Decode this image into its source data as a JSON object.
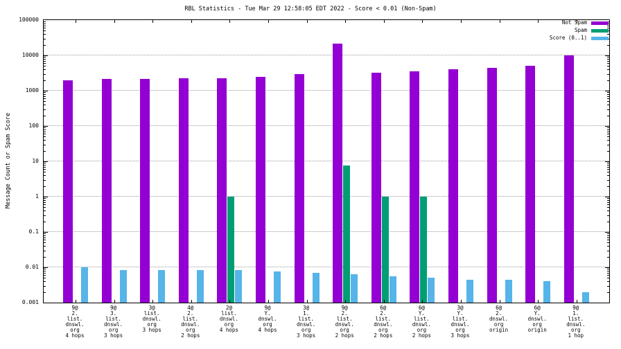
{
  "title": "RBL Statistics - Tue Mar 29 12:58:05 EDT 2022 - Score < 0.01 (Non-Spam)",
  "ylabel": "Message Count or Spam Score",
  "chart_data": {
    "type": "bar",
    "yscale": "log10",
    "ylim": [
      0.001,
      100000
    ],
    "grid": true,
    "legend_position": "top-right",
    "ytick_labels": [
      "100000",
      "10000",
      "1000",
      "100",
      "10",
      "1",
      "0.1",
      "0.01",
      "0.001"
    ],
    "categories": [
      [
        "9@",
        "2.",
        "list.",
        "dnswl.",
        "org",
        "4 hops"
      ],
      [
        "9@",
        "3.",
        "list.",
        "dnswl.",
        "org",
        "3 hops"
      ],
      [
        "3@",
        "list.",
        "dnswl.",
        "org",
        "3 hops"
      ],
      [
        "4@",
        "2.",
        "list.",
        "dnswl.",
        "org",
        "2 hops"
      ],
      [
        "2@",
        "list.",
        "dnswl.",
        "org",
        "4 hops"
      ],
      [
        "9@",
        "Y.",
        "dnswl.",
        "org",
        "4 hops"
      ],
      [
        "3@",
        "1.",
        "list.",
        "dnswl.",
        "org",
        "3 hops"
      ],
      [
        "9@",
        "2.",
        "list.",
        "dnswl.",
        "org",
        "2 hops"
      ],
      [
        "6@",
        "2.",
        "list.",
        "dnswl.",
        "org",
        "2 hops"
      ],
      [
        "6@",
        "Y.",
        "list.",
        "dnswl.",
        "org",
        "2 hops"
      ],
      [
        "3@",
        "Y.",
        "list.",
        "dnswl.",
        "org",
        "3 hops"
      ],
      [
        "6@",
        "2.",
        "dnswl.",
        "org",
        "origin"
      ],
      [
        "6@",
        "Y.",
        "dnswl.",
        "org",
        "origin"
      ],
      [
        "9@",
        "1.",
        "list.",
        "dnswl.",
        "org",
        "1 hop"
      ]
    ],
    "series": [
      {
        "name": "Not Spam",
        "color": "#9400d3",
        "values": [
          2000,
          2200,
          2200,
          2300,
          2300,
          2500,
          2900,
          22000,
          3200,
          3500,
          4100,
          4500,
          5000,
          10000
        ]
      },
      {
        "name": "Spam",
        "color": "#009e73",
        "values": [
          0,
          0,
          0,
          0,
          1,
          0,
          0,
          7.5,
          1,
          1,
          0,
          0,
          0,
          0
        ]
      },
      {
        "name": "Score (0..1)",
        "color": "#56b4e9",
        "values": [
          0.01,
          0.0085,
          0.0085,
          0.0085,
          0.0085,
          0.0075,
          0.007,
          0.0065,
          0.0055,
          0.005,
          0.0045,
          0.0045,
          0.004,
          0.002
        ]
      }
    ]
  }
}
